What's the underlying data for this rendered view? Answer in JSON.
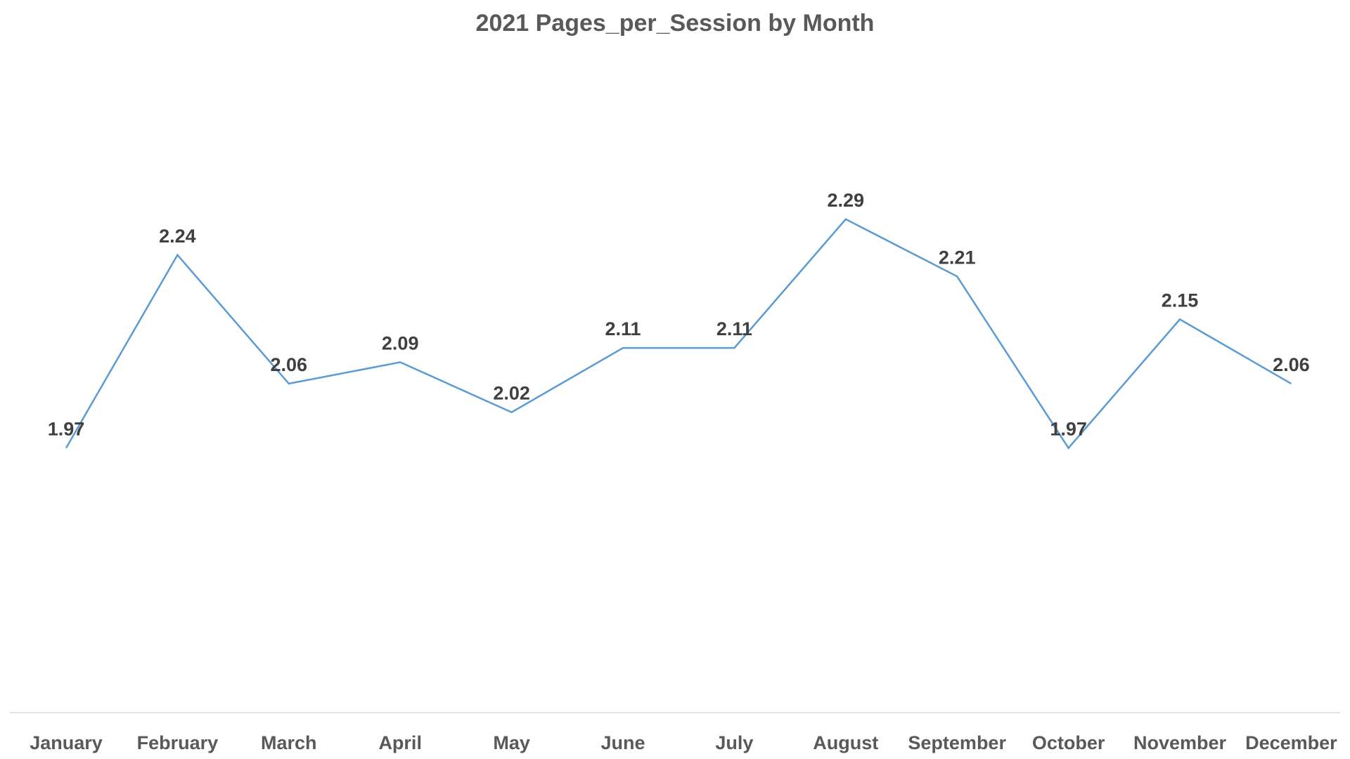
{
  "chart_data": {
    "type": "line",
    "title": "2021 Pages_per_Session by Month",
    "xlabel": "",
    "ylabel": "",
    "categories": [
      "January",
      "February",
      "March",
      "April",
      "May",
      "June",
      "July",
      "August",
      "September",
      "October",
      "November",
      "December"
    ],
    "series": [
      {
        "values": [
          1.97,
          2.24,
          2.06,
          2.09,
          2.02,
          2.11,
          2.11,
          2.29,
          2.21,
          1.97,
          2.15,
          2.06
        ],
        "labels": [
          "1.97",
          "2.24",
          "2.06",
          "2.09",
          "2.02",
          "2.11",
          "2.11",
          "2.29",
          "2.21",
          "1.97",
          "2.15",
          "2.06"
        ],
        "color": "#5B9BD5"
      }
    ],
    "ylim": [
      1.6,
      2.4
    ],
    "grid": false,
    "legend": "none",
    "axis_color": "#D9D9D9"
  }
}
